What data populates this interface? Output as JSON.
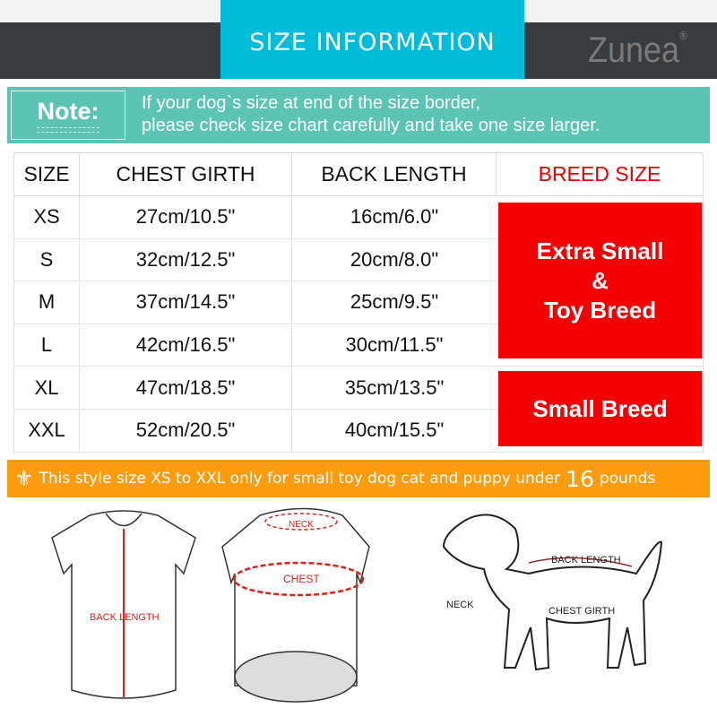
{
  "header": {
    "title": "SIZE INFORMATION",
    "brand": "Zunea",
    "brand_mark": "®"
  },
  "note": {
    "label": "Note:",
    "line1": "If your dog`s size at end of the size border,",
    "line2": "please check size chart carefully and take one size larger."
  },
  "table": {
    "headers": [
      "SIZE",
      "CHEST GIRTH",
      "BACK LENGTH",
      "BREED SIZE"
    ],
    "rows": [
      [
        "XS",
        "27cm/10.5\"",
        "16cm/6.0\""
      ],
      [
        "S",
        "32cm/12.5\"",
        "20cm/8.0\""
      ],
      [
        "M",
        "37cm/14.5\"",
        "25cm/9.5\""
      ],
      [
        "L",
        "42cm/16.5\"",
        "30cm/11.5\""
      ],
      [
        "XL",
        "47cm/18.5\"",
        "35cm/13.5\""
      ],
      [
        "XXL",
        "52cm/20.5\"",
        "40cm/15.5\""
      ]
    ],
    "breeds": [
      {
        "line1": "Extra Small",
        "line2": "&",
        "line3": "Toy Breed"
      },
      {
        "line1": "Small Breed"
      }
    ]
  },
  "banner": {
    "icon": "fleur-de-lis-icon",
    "text_before": "This style size XS to XXL only for small toy dog cat and puppy under",
    "number": "16",
    "text_after": "pounds"
  },
  "diagram": {
    "back_length": "BACK LENGTH",
    "neck": "NECK",
    "chest": "CHEST",
    "dog_back_length": "BACK LENGTH",
    "dog_neck": "NECK",
    "dog_chest_girth": "CHEST GIRTH"
  },
  "colors": {
    "title_bg": "#00bcd9",
    "band": "#393c3f",
    "note_bg": "#5cc4b4",
    "breed_red": "#f50000",
    "banner_orange": "#fd9c0e",
    "measure_red": "#d9231e"
  }
}
